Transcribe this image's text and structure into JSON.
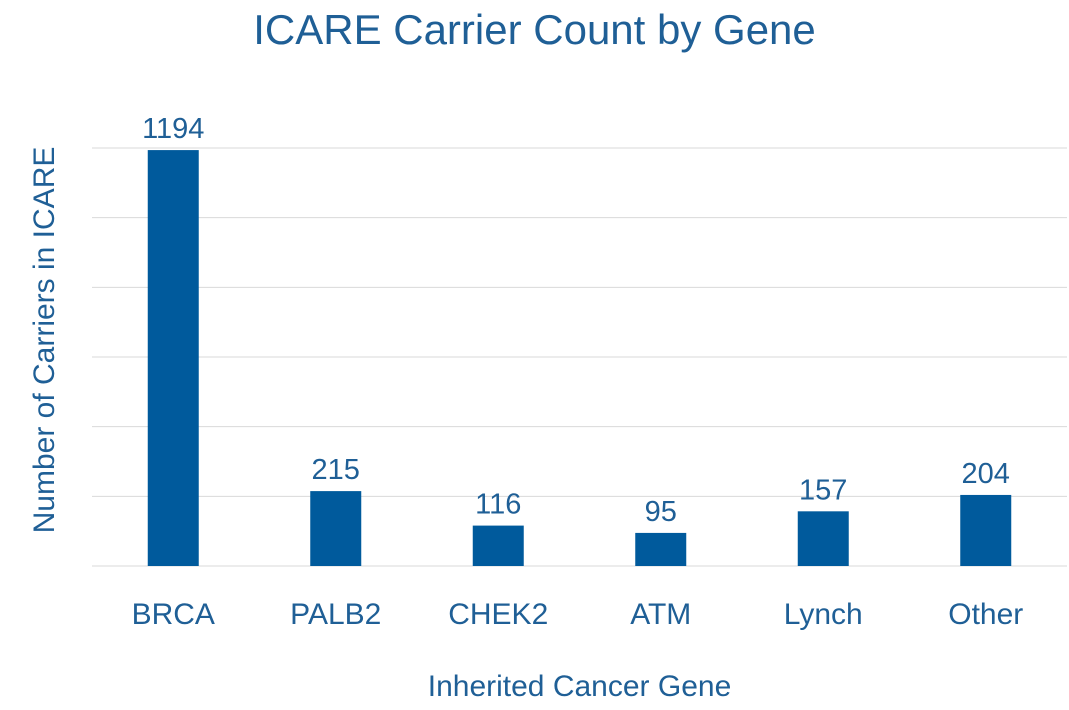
{
  "chart_data": {
    "type": "bar",
    "title": "ICARE Carrier Count by Gene",
    "xlabel": "Inherited Cancer Gene",
    "ylabel": "Number of Carriers in ICARE",
    "categories": [
      "BRCA",
      "PALB2",
      "CHEK2",
      "ATM",
      "Lynch",
      "Other"
    ],
    "values": [
      1194,
      215,
      116,
      95,
      157,
      204
    ],
    "data_labels": [
      "1194",
      "215",
      "116",
      "95",
      "157",
      "204"
    ],
    "ylim": [
      0,
      1200
    ],
    "y_gridlines": [
      0,
      200,
      400,
      600,
      800,
      1000,
      1200
    ],
    "grid": true,
    "legend": "none",
    "colors": {
      "bar": "#005a9c",
      "text": "#1f5f96",
      "gridline": "#d9d9d9"
    }
  }
}
